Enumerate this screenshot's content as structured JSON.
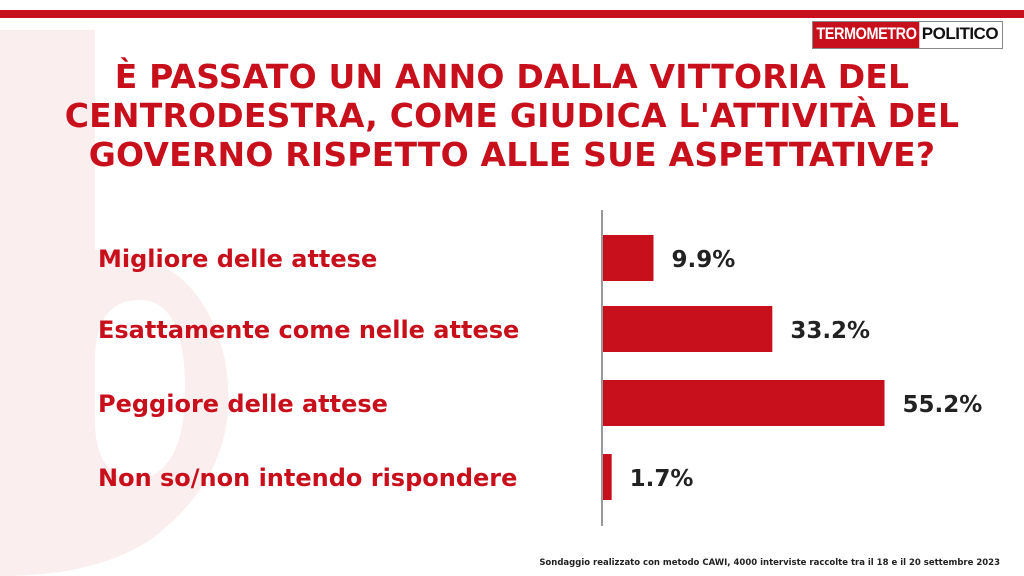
{
  "brand": {
    "part1": "TERMOMETRO",
    "part2": "POLITICO"
  },
  "title": "È PASSATO UN ANNO DALLA VITTORIA DEL CENTRODESTRA, COME GIUDICA L'ATTIVITÀ DEL GOVERNO RISPETTO ALLE SUE ASPETTATIVE?",
  "footnote": "Sondaggio realizzato con metodo CAWI, 4000 interviste raccolte tra il 18 e il 20 settembre 2023",
  "colors": {
    "accent": "#c8101c",
    "axis": "#333333"
  },
  "chart_data": {
    "type": "bar",
    "orientation": "horizontal",
    "categories": [
      "Migliore delle attese",
      "Esattamente come nelle attese",
      "Peggiore delle attese",
      "Non so/non intendo rispondere"
    ],
    "values": [
      9.9,
      33.2,
      55.2,
      1.7
    ],
    "value_labels": [
      "9.9%",
      "33.2%",
      "55.2%",
      "1.7%"
    ],
    "unit": "%"
  }
}
